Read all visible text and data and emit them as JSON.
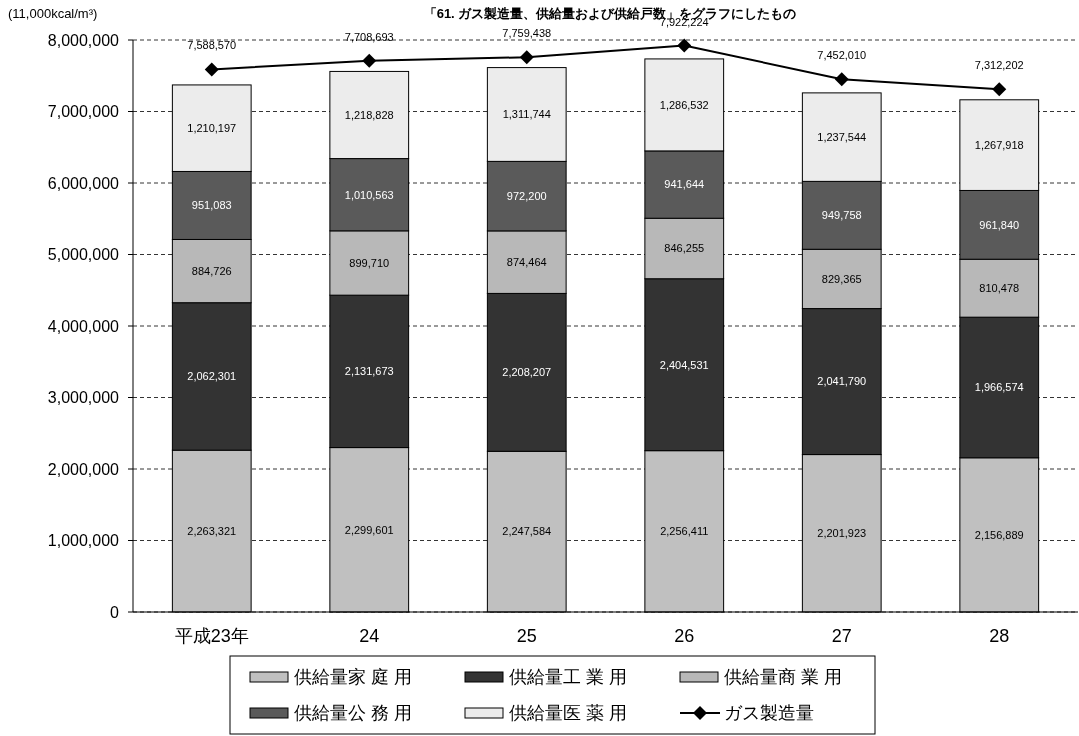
{
  "chart_data": {
    "type": "bar",
    "title": "「61. ガス製造量、供給量および供給戸数」をグラフにしたもの",
    "ylabel": "(11,000kcal/m³)",
    "categories": [
      "平成23年",
      "24",
      "25",
      "26",
      "27",
      "28"
    ],
    "stacked": true,
    "grid": "y",
    "legend": "bottom",
    "marker": "diamond",
    "ylim": [
      0,
      8000000
    ],
    "yticks": [
      {
        "value": 0,
        "label": "0"
      },
      {
        "value": 1000000,
        "label": "1,000,000"
      },
      {
        "value": 2000000,
        "label": "2,000,000"
      },
      {
        "value": 3000000,
        "label": "3,000,000"
      },
      {
        "value": 4000000,
        "label": "4,000,000"
      },
      {
        "value": 5000000,
        "label": "5,000,000"
      },
      {
        "value": 6000000,
        "label": "6,000,000"
      },
      {
        "value": 7000000,
        "label": "7,000,000"
      },
      {
        "value": 8000000,
        "label": "8,000,000"
      }
    ],
    "series": [
      {
        "name": "供給量家 庭 用",
        "color": "#c0c0c0",
        "values": [
          2263321,
          2299601,
          2247584,
          2256411,
          2201923,
          2156889
        ],
        "value_labels": [
          "2,263,321",
          "2,299,601",
          "2,247,584",
          "2,256,411",
          "2,201,923",
          "2,156,889"
        ]
      },
      {
        "name": "供給量工 業 用",
        "color": "#333333",
        "values": [
          2062301,
          2131673,
          2208207,
          2404531,
          2041790,
          1966574
        ],
        "value_labels": [
          "2,062,301",
          "2,131,673",
          "2,208,207",
          "2,404,531",
          "2,041,790",
          "1,966,574"
        ]
      },
      {
        "name": "供給量商 業 用",
        "color": "#b8b8b8",
        "values": [
          884726,
          899710,
          874464,
          846255,
          829365,
          810478
        ],
        "value_labels": [
          "884,726",
          "899,710",
          "874,464",
          "846,255",
          "829,365",
          "810,478"
        ]
      },
      {
        "name": "供給量公 務 用",
        "color": "#5a5a5a",
        "values": [
          951083,
          1010563,
          972200,
          941644,
          949758,
          961840
        ],
        "value_labels": [
          "951,083",
          "1,010,563",
          "972,200",
          "941,644",
          "949,758",
          "961,840"
        ]
      },
      {
        "name": "供給量医 薬 用",
        "color": "#ececec",
        "values": [
          1210197,
          1218828,
          1311744,
          1286532,
          1237544,
          1267918
        ],
        "value_labels": [
          "1,210,197",
          "1,218,828",
          "1,311,744",
          "1,286,532",
          "1,237,544",
          "1,267,918"
        ]
      },
      {
        "name": "ガス製造量",
        "type": "line",
        "color": "#000000",
        "values": [
          7588570,
          7708693,
          7759438,
          7922224,
          7452010,
          7312202
        ],
        "value_labels": [
          "7,588,570",
          "7,708,693",
          "7,759,438",
          "7,922,224",
          "7,452,010",
          "7,312,202"
        ]
      }
    ]
  }
}
